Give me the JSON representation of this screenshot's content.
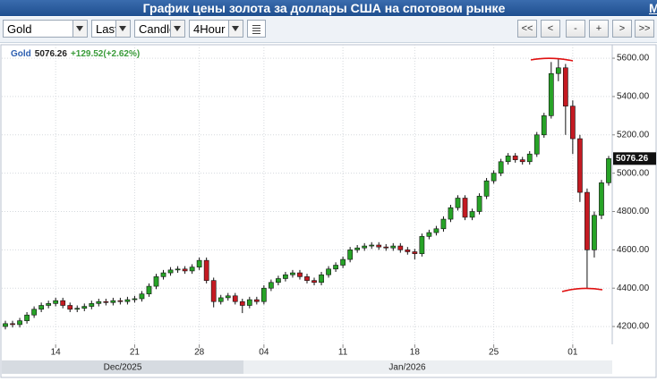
{
  "header": {
    "title": "График цены золота за доллары США на спотовом рынке",
    "link": "M"
  },
  "toolbar": {
    "symbol": "Gold",
    "price_type": "Last",
    "chart_type": "Candle",
    "interval": "4Hour",
    "buttons": [
      "<<",
      "<",
      "-",
      "+",
      ">",
      ">>"
    ]
  },
  "chart_data": {
    "type": "candlestick",
    "symbol": "Gold",
    "last_price": 5076.26,
    "change": "+129.52(+2.62%)",
    "categories": [
      null,
      null,
      null,
      null,
      null,
      null,
      null,
      "14",
      null,
      null,
      null,
      null,
      null,
      null,
      null,
      null,
      null,
      null,
      "21",
      null,
      null,
      null,
      null,
      null,
      null,
      null,
      null,
      "28",
      null,
      null,
      null,
      null,
      null,
      null,
      null,
      null,
      "04",
      null,
      null,
      null,
      null,
      null,
      null,
      null,
      null,
      null,
      null,
      "11",
      null,
      null,
      null,
      null,
      null,
      null,
      null,
      null,
      null,
      "18",
      null,
      null,
      null,
      null,
      null,
      null,
      null,
      null,
      null,
      null,
      "25",
      null,
      null,
      null,
      null,
      null,
      null,
      null,
      null,
      null,
      null,
      "01",
      null,
      null,
      null,
      null,
      null
    ],
    "open": [
      4200,
      4215,
      4210,
      4230,
      4260,
      4290,
      4310,
      4320,
      4335,
      4310,
      4290,
      4295,
      4305,
      4320,
      4330,
      4325,
      4335,
      4330,
      4340,
      4345,
      4370,
      4410,
      4460,
      4480,
      4495,
      4500,
      4490,
      4510,
      4545,
      4440,
      4330,
      4350,
      4360,
      4330,
      4310,
      4340,
      4330,
      4400,
      4430,
      4450,
      4470,
      4480,
      4460,
      4440,
      4430,
      4470,
      4500,
      4520,
      4550,
      4600,
      4610,
      4620,
      4625,
      4615,
      4610,
      4620,
      4600,
      4590,
      4580,
      4670,
      4690,
      4710,
      4760,
      4820,
      4870,
      4770,
      4800,
      4880,
      4960,
      5000,
      5060,
      5090,
      5070,
      5060,
      5100,
      5200,
      5300,
      5520,
      5550,
      5350,
      5180,
      4900,
      4600,
      4780,
      4950
    ],
    "high": [
      4230,
      4230,
      4245,
      4275,
      4305,
      4325,
      4335,
      4350,
      4350,
      4325,
      4310,
      4320,
      4335,
      4345,
      4345,
      4350,
      4350,
      4355,
      4360,
      4385,
      4425,
      4475,
      4495,
      4510,
      4515,
      4515,
      4525,
      4560,
      4560,
      4455,
      4365,
      4375,
      4375,
      4345,
      4355,
      4355,
      4415,
      4445,
      4465,
      4485,
      4495,
      4495,
      4475,
      4455,
      4485,
      4515,
      4535,
      4565,
      4615,
      4625,
      4635,
      4640,
      4640,
      4630,
      4635,
      4635,
      4615,
      4605,
      4685,
      4705,
      4725,
      4775,
      4835,
      4885,
      4885,
      4815,
      4895,
      4975,
      5015,
      5075,
      5105,
      5105,
      5085,
      5115,
      5215,
      5315,
      5580,
      5595,
      5570,
      5380,
      5200,
      4920,
      4800,
      4965,
      5090
    ],
    "low": [
      4185,
      4195,
      4195,
      4215,
      4245,
      4275,
      4295,
      4305,
      4295,
      4275,
      4275,
      4280,
      4290,
      4305,
      4310,
      4310,
      4315,
      4315,
      4325,
      4330,
      4355,
      4395,
      4445,
      4465,
      4480,
      4475,
      4475,
      4495,
      4425,
      4300,
      4315,
      4335,
      4315,
      4270,
      4295,
      4315,
      4315,
      4385,
      4415,
      4435,
      4455,
      4445,
      4425,
      4415,
      4415,
      4455,
      4485,
      4505,
      4535,
      4585,
      4595,
      4605,
      4600,
      4595,
      4595,
      4585,
      4575,
      4550,
      4565,
      4655,
      4675,
      4695,
      4745,
      4805,
      4755,
      4755,
      4785,
      4865,
      4945,
      4985,
      5045,
      5055,
      5045,
      5045,
      5085,
      5185,
      5285,
      5480,
      5200,
      5100,
      4850,
      4400,
      4560,
      4760,
      4935
    ],
    "close": [
      4215,
      4210,
      4230,
      4260,
      4290,
      4310,
      4320,
      4335,
      4310,
      4290,
      4295,
      4305,
      4320,
      4330,
      4325,
      4335,
      4330,
      4340,
      4345,
      4370,
      4410,
      4460,
      4480,
      4495,
      4500,
      4490,
      4510,
      4545,
      4440,
      4330,
      4350,
      4360,
      4330,
      4310,
      4340,
      4330,
      4400,
      4430,
      4450,
      4470,
      4480,
      4460,
      4440,
      4430,
      4470,
      4500,
      4520,
      4550,
      4600,
      4610,
      4620,
      4625,
      4615,
      4610,
      4620,
      4600,
      4590,
      4580,
      4670,
      4690,
      4710,
      4760,
      4820,
      4870,
      4770,
      4800,
      4880,
      4960,
      5000,
      5060,
      5090,
      5070,
      5060,
      5100,
      5200,
      5300,
      5520,
      5550,
      5350,
      5180,
      4900,
      4600,
      4780,
      4950,
      5076
    ],
    "up_color": "#27a327",
    "down_color": "#c41a22",
    "wick_color": "#111111",
    "ylim": [
      4107,
      5661
    ],
    "yticks": [
      {
        "value": 4200,
        "label": "4200.00"
      },
      {
        "value": 4400,
        "label": "4400.00"
      },
      {
        "value": 4600,
        "label": "4600.00"
      },
      {
        "value": 4800,
        "label": "4800.00"
      },
      {
        "value": 5000,
        "label": "5000.00"
      },
      {
        "value": 5200,
        "label": "5200.00"
      },
      {
        "value": 5400,
        "label": "5400.00"
      },
      {
        "value": 5600,
        "label": "5600.00"
      }
    ],
    "x_groups": [
      "Dec/2025",
      "Jan/2026"
    ],
    "grid": true
  }
}
